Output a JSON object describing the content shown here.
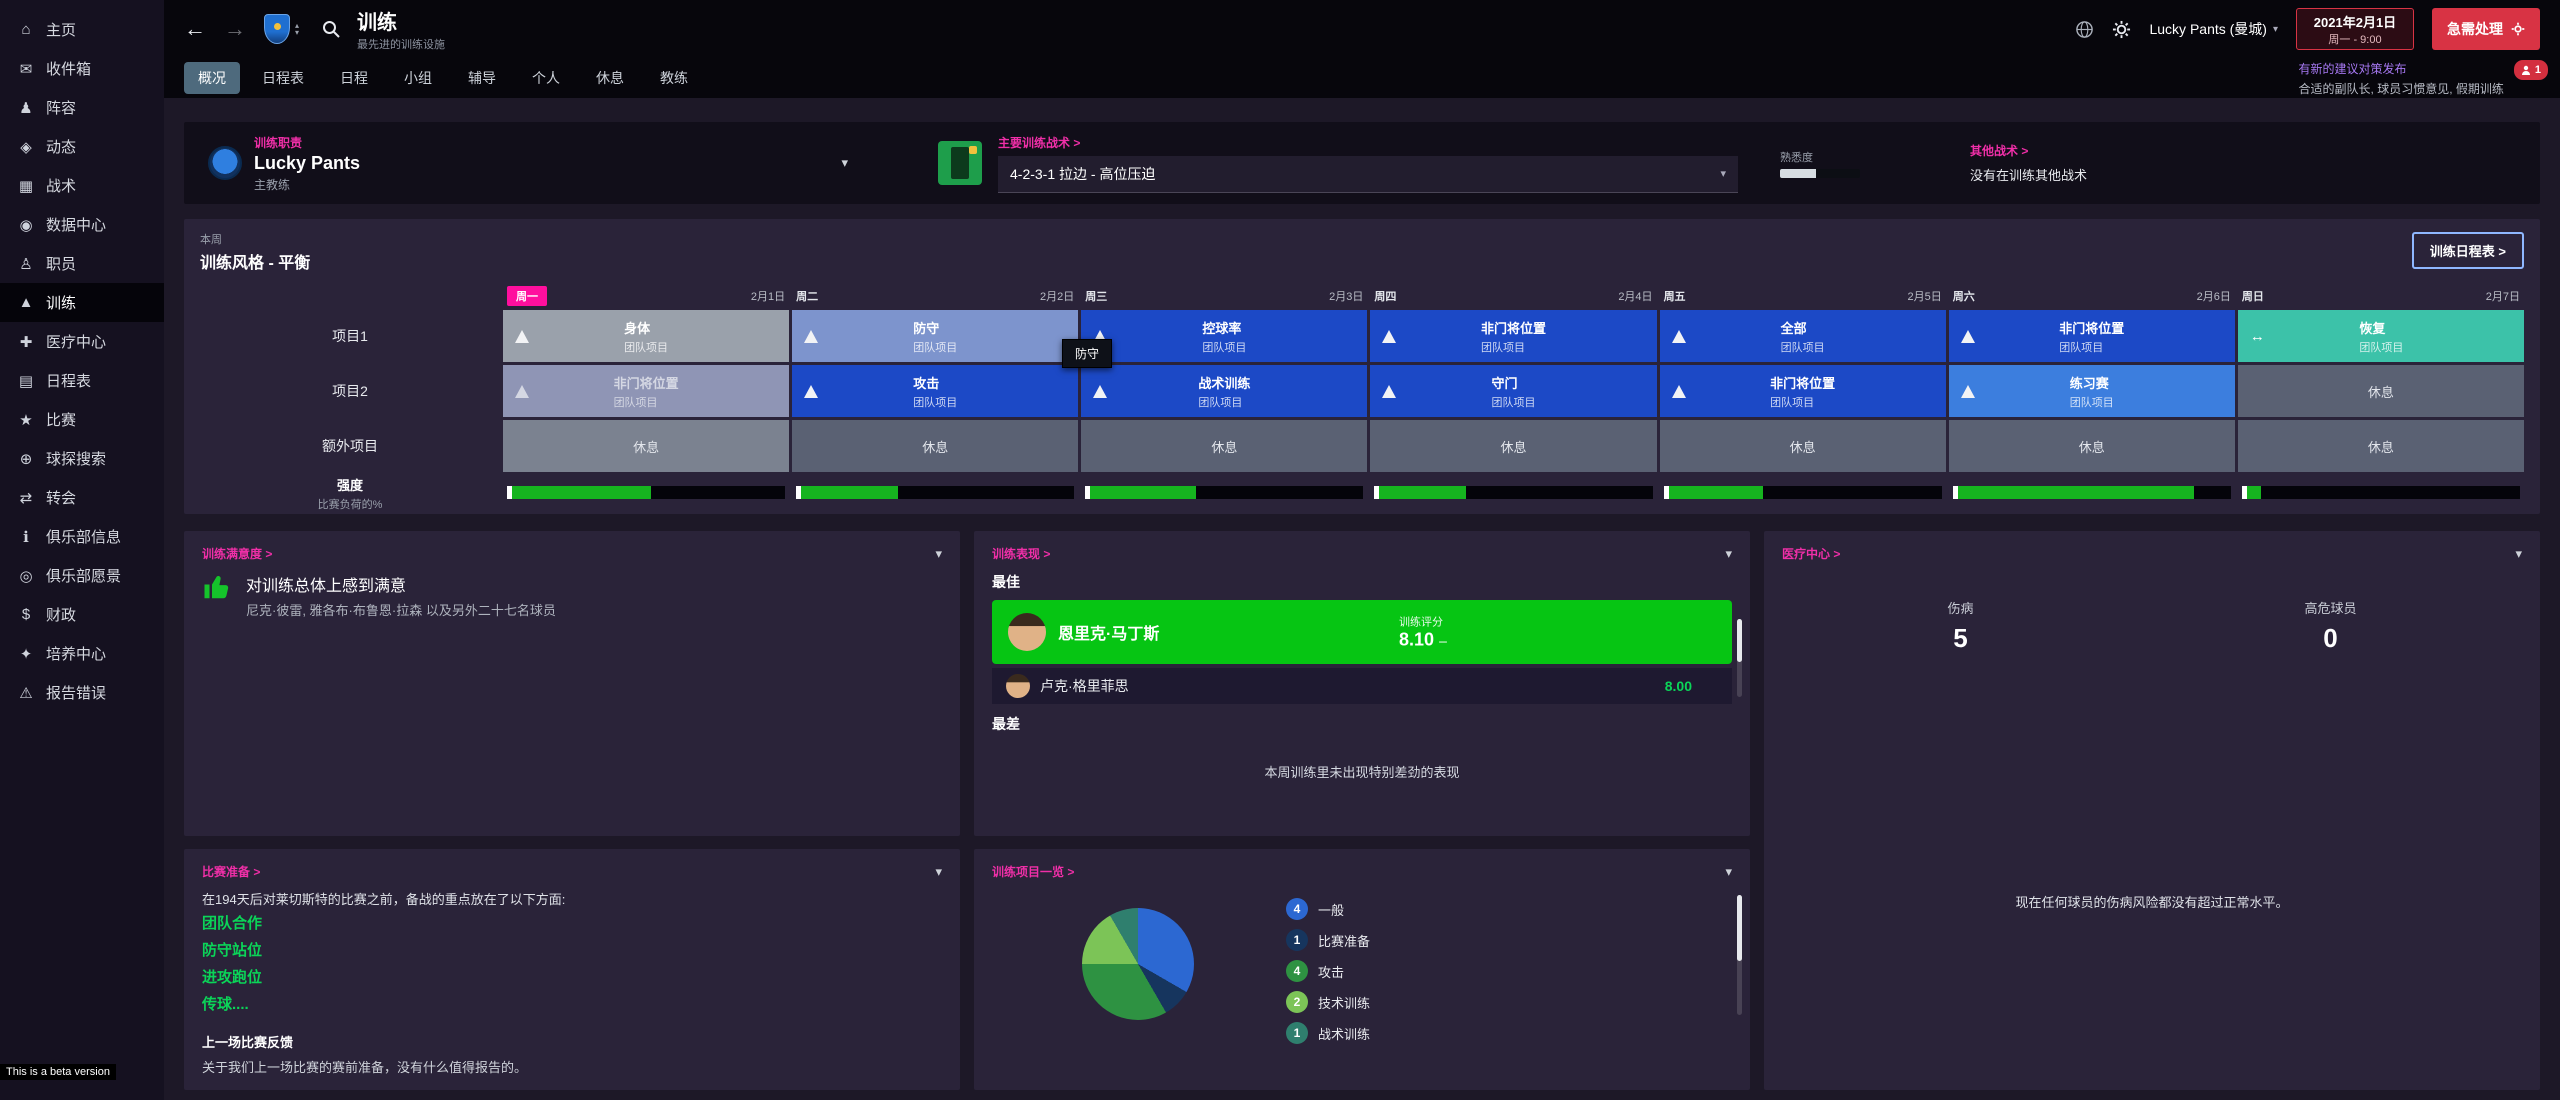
{
  "topbar": {
    "title": "训练",
    "subtitle": "最先进的训练设施",
    "manager_label": "Lucky Pants (曼城)",
    "date_line1": "2021年2月1日",
    "date_line2": "周一 - 9:00",
    "continue_label": "急需处理",
    "notification": {
      "line1": "有新的建议对策发布",
      "line2": "合适的副队长, 球员习惯意见, 假期训练",
      "badge": "1"
    }
  },
  "tabs": [
    {
      "id": "overview",
      "label": "概况",
      "active": true
    },
    {
      "id": "calendar",
      "label": "日程表",
      "active": false
    },
    {
      "id": "schedules",
      "label": "日程",
      "active": false
    },
    {
      "id": "units",
      "label": "小组",
      "active": false
    },
    {
      "id": "mentoring",
      "label": "辅导",
      "active": false
    },
    {
      "id": "individual",
      "label": "个人",
      "active": false
    },
    {
      "id": "rest",
      "label": "休息",
      "active": false
    },
    {
      "id": "coaches",
      "label": "教练",
      "active": false
    }
  ],
  "sidebar": {
    "items": [
      {
        "id": "home",
        "label": "主页",
        "icon": "home-icon",
        "glyph": "⌂",
        "active": false
      },
      {
        "id": "inbox",
        "label": "收件箱",
        "icon": "inbox-icon",
        "glyph": "✉",
        "active": false
      },
      {
        "id": "squad",
        "label": "阵容",
        "icon": "squad-icon",
        "glyph": "♟",
        "active": false
      },
      {
        "id": "dynamics",
        "label": "动态",
        "icon": "dynamics-icon",
        "glyph": "◈",
        "active": false
      },
      {
        "id": "tactics",
        "label": "战术",
        "icon": "tactics-icon",
        "glyph": "▦",
        "active": false
      },
      {
        "id": "datahub",
        "label": "数据中心",
        "icon": "data-hub-icon",
        "glyph": "◉",
        "active": false
      },
      {
        "id": "staff",
        "label": "职员",
        "icon": "staff-icon",
        "glyph": "♙",
        "active": false
      },
      {
        "id": "training",
        "label": "训练",
        "icon": "training-icon",
        "glyph": "▲",
        "active": true
      },
      {
        "id": "medical",
        "label": "医疗中心",
        "icon": "medical-icon",
        "glyph": "✚",
        "active": false
      },
      {
        "id": "schedule",
        "label": "日程表",
        "icon": "calendar-icon",
        "glyph": "▤",
        "active": false
      },
      {
        "id": "matches",
        "label": "比赛",
        "icon": "matches-icon",
        "glyph": "★",
        "active": false
      },
      {
        "id": "scouting",
        "label": "球探搜索",
        "icon": "scouting-icon",
        "glyph": "⊕",
        "active": false
      },
      {
        "id": "transfers",
        "label": "转会",
        "icon": "transfers-icon",
        "glyph": "⇄",
        "active": false
      },
      {
        "id": "clubinfo",
        "label": "俱乐部信息",
        "icon": "club-info-icon",
        "glyph": "ℹ",
        "active": false
      },
      {
        "id": "clubvision",
        "label": "俱乐部愿景",
        "icon": "club-vision-icon",
        "glyph": "◎",
        "active": false
      },
      {
        "id": "finances",
        "label": "财政",
        "icon": "finances-icon",
        "glyph": "$",
        "active": false
      },
      {
        "id": "development",
        "label": "培养中心",
        "icon": "development-icon",
        "glyph": "✦",
        "active": false
      },
      {
        "id": "bugs",
        "label": "报告错误",
        "icon": "report-bug-icon",
        "glyph": "⚠",
        "active": false
      }
    ],
    "beta": "This is a beta version"
  },
  "responsibility": {
    "link": "训练职责",
    "team": "Lucky Pants",
    "role": "主教练",
    "main_tactic_link": "主要训练战术 >",
    "tactic_value": "4-2-3-1 拉边 - 高位压迫",
    "familiarity_label": "熟悉度",
    "familiarity_pct": 45,
    "other_link": "其他战术 >",
    "other_text": "没有在训练其他战术"
  },
  "week": {
    "period": "本周",
    "style": "训练风格 - 平衡",
    "button": "训练日程表 >",
    "tooltip": "防守",
    "days": [
      {
        "name": "周一",
        "date": "2月1日",
        "highlight": true
      },
      {
        "name": "周二",
        "date": "2月2日",
        "highlight": false
      },
      {
        "name": "周三",
        "date": "2月3日",
        "highlight": false
      },
      {
        "name": "周四",
        "date": "2月4日",
        "highlight": false
      },
      {
        "name": "周五",
        "date": "2月5日",
        "highlight": false
      },
      {
        "name": "周六",
        "date": "2月6日",
        "highlight": false
      },
      {
        "name": "周日",
        "date": "2月7日",
        "highlight": false
      }
    ],
    "rows": [
      {
        "label": "项目1",
        "cells": [
          {
            "title": "身体",
            "sub": "团队项目",
            "type": "gray"
          },
          {
            "title": "防守",
            "sub": "团队项目",
            "type": "lightblue"
          },
          {
            "title": "控球率",
            "sub": "团队项目",
            "type": "blue"
          },
          {
            "title": "非门将位置",
            "sub": "团队项目",
            "type": "blue"
          },
          {
            "title": "全部",
            "sub": "团队项目",
            "type": "blue"
          },
          {
            "title": "非门将位置",
            "sub": "团队项目",
            "type": "blue"
          },
          {
            "title": "恢复",
            "sub": "团队项目",
            "type": "teal",
            "icon": "recovery"
          }
        ]
      },
      {
        "label": "项目2",
        "cells": [
          {
            "title": "非门将位置",
            "sub": "团队项目",
            "type": "muted"
          },
          {
            "title": "攻击",
            "sub": "团队项目",
            "type": "blue"
          },
          {
            "title": "战术训练",
            "sub": "团队项目",
            "type": "blue"
          },
          {
            "title": "守门",
            "sub": "团队项目",
            "type": "blue"
          },
          {
            "title": "非门将位置",
            "sub": "团队项目",
            "type": "blue"
          },
          {
            "title": "练习赛",
            "sub": "团队项目",
            "type": "midblue"
          },
          {
            "title": "休息",
            "type": "rest"
          }
        ]
      },
      {
        "label": "额外项目",
        "cells": [
          {
            "title": "休息",
            "type": "rest-light"
          },
          {
            "title": "休息",
            "type": "rest"
          },
          {
            "title": "休息",
            "type": "rest"
          },
          {
            "title": "休息",
            "type": "rest"
          },
          {
            "title": "休息",
            "type": "rest"
          },
          {
            "title": "休息",
            "type": "rest"
          },
          {
            "title": "休息",
            "type": "rest"
          }
        ]
      }
    ],
    "intensity": {
      "label": "强度",
      "sublabel": "比赛负荷的%",
      "values": [
        50,
        35,
        38,
        31,
        34,
        85,
        5
      ]
    }
  },
  "happiness": {
    "header": "训练满意度 >",
    "text": "对训练总体上感到满意",
    "subtext": "尼克·彼雷, 雅各布·布鲁恩·拉森 以及另外二十七名球员"
  },
  "performance": {
    "header": "训练表现 >",
    "best_label": "最佳",
    "best": {
      "name": "恩里克·马丁斯",
      "rating_label": "训练评分",
      "rating": "8.10",
      "trend": "–"
    },
    "second": {
      "name": "卢克·格里菲思",
      "rating": "8.00"
    },
    "worst_label": "最差",
    "worst_empty": "本周训练里未出现特别差劲的表现"
  },
  "medical": {
    "header": "医疗中心 >",
    "injuries_label": "伤病",
    "injuries": "5",
    "risk_label": "高危球员",
    "risk": "0",
    "note": "现在任何球员的伤病风险都没有超过正常水平。"
  },
  "matchprep": {
    "header": "比赛准备 >",
    "intro": "在194天后对莱切斯特的比赛之前，备战的重点放在了以下方面:",
    "focus": [
      "团队合作",
      "防守站位",
      "进攻跑位",
      "传球...."
    ],
    "feedback_label": "上一场比赛反馈",
    "feedback": "关于我们上一场比赛的赛前准备，没有什么值得报告的。"
  },
  "units": {
    "header": "训练项目一览 >"
  },
  "chart_data": {
    "type": "pie",
    "title": "训练项目一览",
    "labels": [
      "一般",
      "比赛准备",
      "攻击",
      "技术训练",
      "战术训练"
    ],
    "values": [
      4,
      1,
      4,
      2,
      1
    ],
    "colors": [
      "#2c68d2",
      "#16355e",
      "#2e9242",
      "#7cc457",
      "#2f7f6e"
    ],
    "legend_position": "right"
  }
}
